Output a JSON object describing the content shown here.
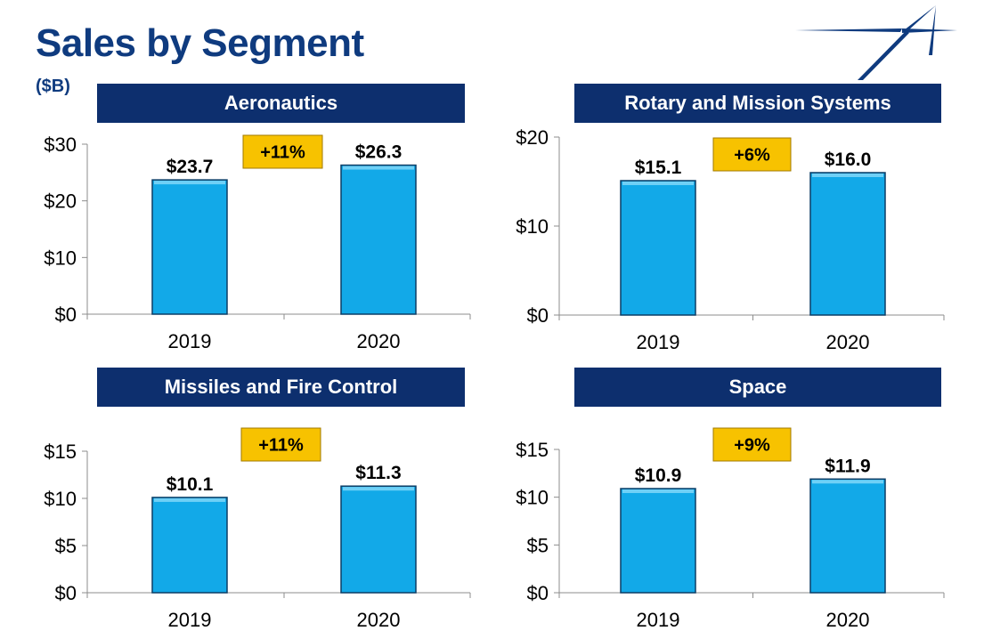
{
  "title": "Sales by Segment",
  "units": "($B)",
  "colors": {
    "title": "#0f3b7f",
    "header_bg": "#0d2f6e",
    "bar": "#12a9e8",
    "bar_edge": "#0b3d66",
    "badge_bg": "#f7c200",
    "badge_edge": "#a27a00"
  },
  "logo": {
    "icon": "star-logo-icon"
  },
  "chart_data": [
    {
      "type": "bar",
      "title": "Aeronautics",
      "categories": [
        "2019",
        "2020"
      ],
      "values": [
        23.7,
        26.3
      ],
      "value_labels": [
        "$23.7",
        "$26.3"
      ],
      "yticks": [
        "$0",
        "$10",
        "$20",
        "$30"
      ],
      "ytick_values": [
        0,
        10,
        20,
        30
      ],
      "ylim": [
        0,
        30
      ],
      "badge": "+11%"
    },
    {
      "type": "bar",
      "title": "Rotary and Mission Systems",
      "categories": [
        "2019",
        "2020"
      ],
      "values": [
        15.1,
        16.0
      ],
      "value_labels": [
        "$15.1",
        "$16.0"
      ],
      "yticks": [
        "$0",
        "$10",
        "$20"
      ],
      "ytick_values": [
        0,
        10,
        20
      ],
      "ylim": [
        0,
        20
      ],
      "badge": "+6%"
    },
    {
      "type": "bar",
      "title": "Missiles and Fire Control",
      "categories": [
        "2019",
        "2020"
      ],
      "values": [
        10.1,
        11.3
      ],
      "value_labels": [
        "$10.1",
        "$11.3"
      ],
      "yticks": [
        "$0",
        "$5",
        "$10",
        "$15"
      ],
      "ytick_values": [
        0,
        5,
        10,
        15
      ],
      "ylim": [
        0,
        15
      ],
      "badge": "+11%"
    },
    {
      "type": "bar",
      "title": "Space",
      "categories": [
        "2019",
        "2020"
      ],
      "values": [
        10.9,
        11.9
      ],
      "value_labels": [
        "$10.9",
        "$11.9"
      ],
      "yticks": [
        "$0",
        "$5",
        "$10",
        "$15"
      ],
      "ytick_values": [
        0,
        5,
        10,
        15
      ],
      "ylim": [
        0,
        15
      ],
      "badge": "+9%"
    }
  ]
}
